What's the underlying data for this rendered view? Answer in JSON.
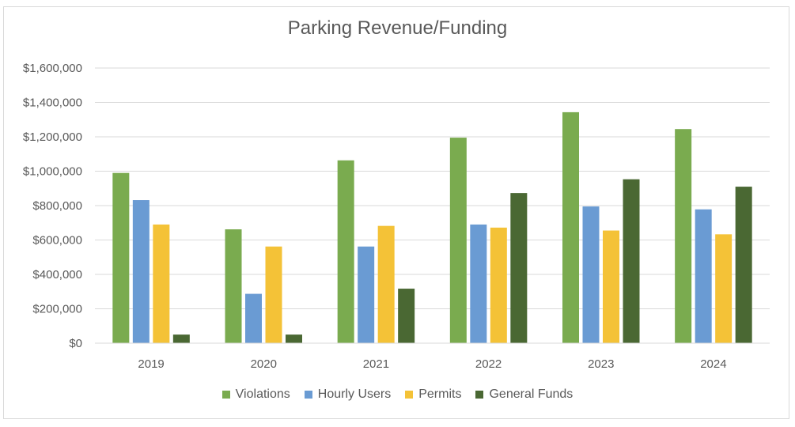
{
  "chart_data": {
    "type": "bar",
    "title": "Parking Revenue/Funding",
    "categories": [
      "2019",
      "2020",
      "2021",
      "2022",
      "2023",
      "2024"
    ],
    "series": [
      {
        "name": "Violations",
        "color": "#7aab4f",
        "values": [
          990000,
          662000,
          1063000,
          1195000,
          1343000,
          1245000
        ]
      },
      {
        "name": "Hourly Users",
        "color": "#6a9bd3",
        "values": [
          832000,
          287000,
          562000,
          690000,
          795000,
          778000
        ]
      },
      {
        "name": "Permits",
        "color": "#f4c237",
        "values": [
          690000,
          562000,
          682000,
          672000,
          655000,
          633000
        ]
      },
      {
        "name": "General Funds",
        "color": "#4a6833",
        "values": [
          50000,
          50000,
          317000,
          873000,
          953000,
          910000
        ]
      }
    ],
    "yticks": [
      "$0",
      "$200,000",
      "$400,000",
      "$600,000",
      "$800,000",
      "$1,000,000",
      "$1,200,000",
      "$1,400,000",
      "$1,600,000"
    ],
    "ylim": [
      0,
      1600000
    ],
    "grid": true,
    "legend": "bottom"
  }
}
